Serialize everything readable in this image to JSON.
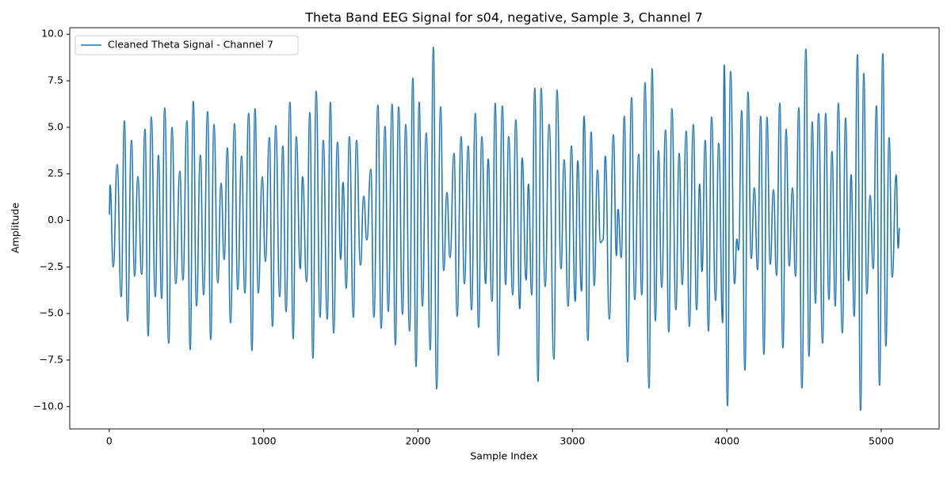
{
  "chart_data": {
    "type": "line",
    "title": "Theta Band EEG Signal for s04, negative, Sample 3, Channel 7",
    "xlabel": "Sample Index",
    "ylabel": "Amplitude",
    "legend": "upper left",
    "grid": false,
    "xlim": [
      -256,
      5375
    ],
    "ylim": [
      -11.2,
      10.35
    ],
    "xticks": [
      0,
      1000,
      2000,
      3000,
      4000,
      5000
    ],
    "yticks": [
      {
        "value": -10,
        "label": "−10.0"
      },
      {
        "value": -7.5,
        "label": "−7.5"
      },
      {
        "value": -5,
        "label": "−5.0"
      },
      {
        "value": -2.5,
        "label": "−2.5"
      },
      {
        "value": 0,
        "label": "0.0"
      },
      {
        "value": 2.5,
        "label": "2.5"
      },
      {
        "value": 5,
        "label": "5.0"
      },
      {
        "value": 7.5,
        "label": "7.5"
      },
      {
        "value": 10,
        "label": "10.0"
      }
    ],
    "x": [
      0,
      5,
      26,
      51,
      77,
      98,
      118,
      144,
      164,
      185,
      210,
      231,
      252,
      272,
      298,
      318,
      339,
      359,
      385,
      406,
      431,
      457,
      477,
      503,
      524,
      544,
      565,
      590,
      611,
      637,
      657,
      678,
      703,
      724,
      744,
      765,
      785,
      811,
      832,
      857,
      878,
      903,
      924,
      944,
      965,
      991,
      1011,
      1037,
      1057,
      1078,
      1104,
      1124,
      1145,
      1170,
      1191,
      1211,
      1237,
      1252,
      1278,
      1299,
      1319,
      1340,
      1365,
      1386,
      1412,
      1432,
      1453,
      1478,
      1499,
      1514,
      1535,
      1555,
      1581,
      1601,
      1627,
      1648,
      1668,
      1694,
      1714,
      1740,
      1761,
      1786,
      1807,
      1832,
      1853,
      1874,
      1899,
      1920,
      1945,
      1966,
      1987,
      2007,
      2028,
      2053,
      2079,
      2099,
      2120,
      2146,
      2166,
      2187,
      2207,
      2233,
      2253,
      2279,
      2300,
      2325,
      2346,
      2371,
      2392,
      2413,
      2438,
      2454,
      2479,
      2500,
      2520,
      2546,
      2567,
      2587,
      2613,
      2633,
      2659,
      2674,
      2700,
      2715,
      2736,
      2756,
      2777,
      2797,
      2823,
      2849,
      2880,
      2900,
      2926,
      2946,
      2972,
      2993,
      3018,
      3034,
      3059,
      3075,
      3100,
      3121,
      3141,
      3162,
      3182,
      3198,
      3213,
      3239,
      3265,
      3285,
      3295,
      3316,
      3336,
      3357,
      3383,
      3403,
      3429,
      3449,
      3470,
      3496,
      3516,
      3537,
      3557,
      3578,
      3603,
      3624,
      3644,
      3670,
      3691,
      3711,
      3737,
      3757,
      3783,
      3804,
      3824,
      3839,
      3860,
      3881,
      3901,
      3927,
      3947,
      3973,
      3983,
      4004,
      4024,
      4050,
      4065,
      4076,
      4096,
      4117,
      4137,
      4158,
      4178,
      4199,
      4219,
      4240,
      4260,
      4281,
      4302,
      4322,
      4343,
      4363,
      4384,
      4404,
      4425,
      4445,
      4466,
      4486,
      4512,
      4532,
      4553,
      4574,
      4594,
      4620,
      4640,
      4661,
      4681,
      4702,
      4722,
      4748,
      4769,
      4789,
      4805,
      4825,
      4846,
      4866,
      4887,
      4907,
      4928,
      4948,
      4969,
      4989,
      5010,
      5030,
      5051,
      5071,
      5097,
      5110,
      5119
    ],
    "series": [
      {
        "name": "Cleaned Theta Signal - Channel 7",
        "color": "#1f77b4",
        "values": [
          0.3,
          1.9,
          -2.5,
          3.0,
          -4.1,
          5.35,
          -5.4,
          4.3,
          -3.0,
          2.35,
          -2.9,
          4.9,
          -6.2,
          5.55,
          -4.1,
          3.5,
          -4.2,
          6.05,
          -6.6,
          5.0,
          -3.4,
          2.65,
          -3.2,
          5.35,
          -6.95,
          6.4,
          -4.6,
          3.5,
          -4.0,
          5.85,
          -6.4,
          5.15,
          -3.35,
          2.0,
          -2.1,
          3.9,
          -5.5,
          5.2,
          -3.7,
          3.45,
          -3.9,
          5.75,
          -7.0,
          6.0,
          -3.9,
          2.35,
          -2.2,
          4.45,
          -5.7,
          5.1,
          -4.1,
          4.0,
          -4.9,
          6.35,
          -6.35,
          4.5,
          -2.6,
          2.35,
          -3.3,
          5.8,
          -7.4,
          6.95,
          -5.2,
          4.3,
          -5.3,
          6.35,
          -6.05,
          4.2,
          -2.1,
          2.05,
          -3.65,
          4.5,
          -5.2,
          4.3,
          -2.4,
          1.3,
          -1.05,
          2.75,
          -5.2,
          6.2,
          -5.8,
          5.05,
          -4.9,
          6.25,
          -6.7,
          6.1,
          -5.05,
          5.15,
          -5.95,
          7.65,
          -7.85,
          6.35,
          -4.6,
          4.7,
          -6.95,
          9.3,
          -9.05,
          6.1,
          -2.7,
          1.5,
          -2.0,
          3.6,
          -5.15,
          4.5,
          -3.4,
          4.0,
          -4.8,
          5.75,
          -5.75,
          4.5,
          -3.4,
          3.3,
          -4.35,
          6.3,
          -7.25,
          6.15,
          -3.45,
          4.5,
          -4.0,
          5.4,
          -4.75,
          3.35,
          -3.2,
          1.95,
          -4.0,
          7.1,
          -8.65,
          7.1,
          -3.55,
          5.15,
          -7.45,
          7.0,
          -2.6,
          3.25,
          -4.6,
          4.0,
          -4.35,
          3.2,
          -3.8,
          5.6,
          -6.45,
          4.75,
          -3.5,
          2.7,
          -1.2,
          -1.05,
          3.45,
          -5.3,
          4.6,
          -1.9,
          0.6,
          -2.0,
          5.6,
          -7.6,
          6.6,
          -4.25,
          3.55,
          -4.0,
          7.4,
          -9.0,
          8.15,
          -5.4,
          3.75,
          -3.6,
          4.85,
          -6.0,
          6.0,
          -4.8,
          3.6,
          -3.45,
          4.8,
          -5.7,
          5.15,
          -4.8,
          1.95,
          -2.75,
          4.3,
          -5.95,
          5.55,
          -4.3,
          4.15,
          -5.5,
          8.35,
          -9.95,
          8.0,
          -3.4,
          -1.0,
          -1.6,
          5.9,
          -8.05,
          6.9,
          -2.05,
          1.75,
          -2.65,
          5.6,
          -7.2,
          5.55,
          -2.35,
          1.65,
          -2.95,
          6.3,
          -6.85,
          4.9,
          -2.45,
          1.75,
          -3.0,
          6.05,
          -9.0,
          9.2,
          -7.3,
          5.3,
          -4.45,
          5.75,
          -6.6,
          5.75,
          -4.25,
          3.7,
          -4.6,
          6.3,
          -6.05,
          5.5,
          -3.25,
          2.45,
          -5.15,
          8.9,
          -10.2,
          7.9,
          -3.95,
          1.35,
          -2.6,
          6.15,
          -8.85,
          8.95,
          -6.75,
          4.45,
          -3.05,
          2.45,
          -1.5,
          -0.4
        ]
      }
    ]
  }
}
